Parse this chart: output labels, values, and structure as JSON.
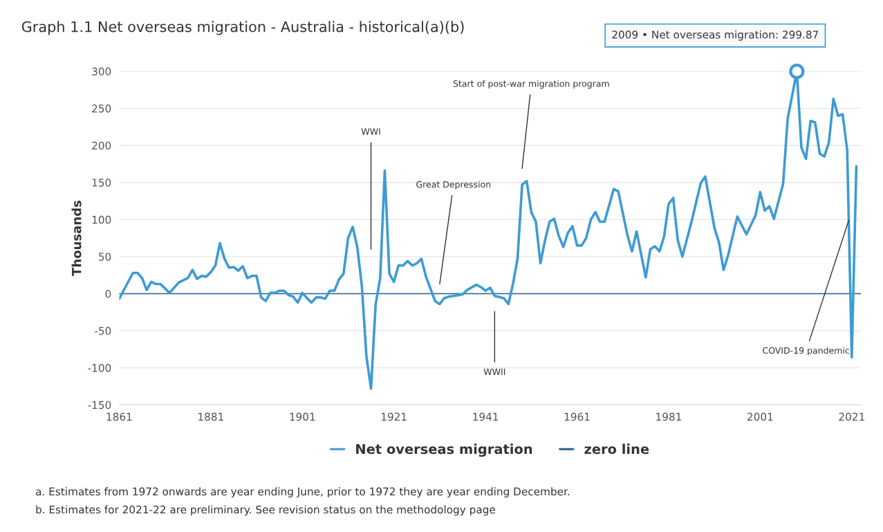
{
  "chart_data": {
    "type": "line",
    "title": "Graph 1.1 Net overseas migration - Australia - historical(a)(b)",
    "ylabel": "Thousands",
    "series": [
      {
        "name": "Net overseas migration",
        "color": "#3e9bd4",
        "x": [
          1861,
          1864,
          1865,
          1866,
          1867,
          1868,
          1869,
          1870,
          1872,
          1874,
          1876,
          1877,
          1878,
          1879,
          1880,
          1881,
          1882,
          1883,
          1884,
          1885,
          1886,
          1887,
          1888,
          1889,
          1890,
          1891,
          1892,
          1893,
          1894,
          1895,
          1896,
          1897,
          1898,
          1899,
          1900,
          1901,
          1902,
          1903,
          1904,
          1905,
          1906,
          1907,
          1908,
          1909,
          1910,
          1911,
          1912,
          1913,
          1914,
          1915,
          1916,
          1917,
          1918,
          1919,
          1920,
          1921,
          1922,
          1923,
          1924,
          1925,
          1926,
          1927,
          1928,
          1930,
          1931,
          1932,
          1933,
          1934,
          1935,
          1936,
          1937,
          1939,
          1940,
          1941,
          1942,
          1943,
          1945,
          1946,
          1947,
          1948,
          1949,
          1950,
          1951,
          1952,
          1953,
          1954,
          1955,
          1956,
          1957,
          1958,
          1959,
          1960,
          1961,
          1962,
          1963,
          1964,
          1965,
          1966,
          1967,
          1969,
          1970,
          1972,
          1973,
          1974,
          1976,
          1977,
          1978,
          1979,
          1980,
          1981,
          1982,
          1983,
          1984,
          1986,
          1988,
          1989,
          1991,
          1992,
          1993,
          1994,
          1996,
          1998,
          2000,
          2001,
          2002,
          2003,
          2004,
          2006,
          2007,
          2009,
          2010,
          2011,
          2012,
          2013,
          2014,
          2015,
          2016,
          2017,
          2018,
          2019,
          2020,
          2021,
          2022
        ],
        "values": [
          -7,
          28,
          28,
          21,
          5,
          16,
          13,
          13,
          1,
          15,
          21,
          32,
          20,
          24,
          23,
          29,
          38,
          68,
          47,
          35,
          36,
          31,
          37,
          21,
          24,
          24,
          -5,
          -10,
          1,
          1,
          4,
          4,
          -2,
          -4,
          -12,
          1,
          -6,
          -12,
          -5,
          -5,
          -7,
          4,
          4,
          19,
          27,
          75,
          90,
          63,
          10,
          -85,
          -128,
          -15,
          21,
          166,
          27,
          16,
          38,
          38,
          44,
          38,
          41,
          47,
          23,
          -10,
          -14,
          -6,
          -4,
          -3,
          -2,
          -1,
          5,
          12,
          9,
          4,
          8,
          -3,
          -6,
          -14,
          13,
          47,
          147,
          152,
          110,
          97,
          41,
          72,
          97,
          101,
          78,
          63,
          82,
          91,
          65,
          65,
          75,
          100,
          110,
          97,
          97,
          141,
          138,
          79,
          57,
          84,
          22,
          60,
          64,
          57,
          77,
          121,
          129,
          72,
          50,
          97,
          149,
          158,
          89,
          69,
          32,
          52,
          104,
          80,
          106,
          137,
          112,
          118,
          101,
          148,
          236,
          299.87,
          197,
          182,
          233,
          231,
          189,
          185,
          204,
          263,
          240,
          242,
          194,
          -86,
          172
        ]
      }
    ],
    "ref_lines": [
      {
        "axis": "y",
        "value": 0,
        "label": "zero line",
        "color": "#2b5f8e"
      }
    ],
    "annotations": [
      "WWI",
      "Great Depression",
      "WWII",
      "Start of post-war migration program",
      {
        "text": "COVID-19 pandemic",
        "x": 2020.34,
        "y": 99
      },
      {
        "text": "2009 • Net overseas migration: 299.87",
        "x": 2009,
        "y": 299.87
      },
      "a. Estimates from 1972 onwards are year ending June, prior to 1972 they are year ending December.",
      "b. Estimates for 2021-22 are preliminary. See revision status on the methodology page"
    ],
    "xlim": [
      1861,
      2023
    ],
    "xticks": [
      1861,
      1881,
      1901,
      1921,
      1941,
      1961,
      1981,
      2001,
      2021
    ],
    "ylim": [
      -150,
      300
    ],
    "yticks": [
      -150,
      -100,
      -50,
      0,
      50,
      100,
      150,
      200,
      250,
      300
    ],
    "grid": "y",
    "legend": "bottom",
    "marker": "none",
    "line_style": "solid"
  }
}
